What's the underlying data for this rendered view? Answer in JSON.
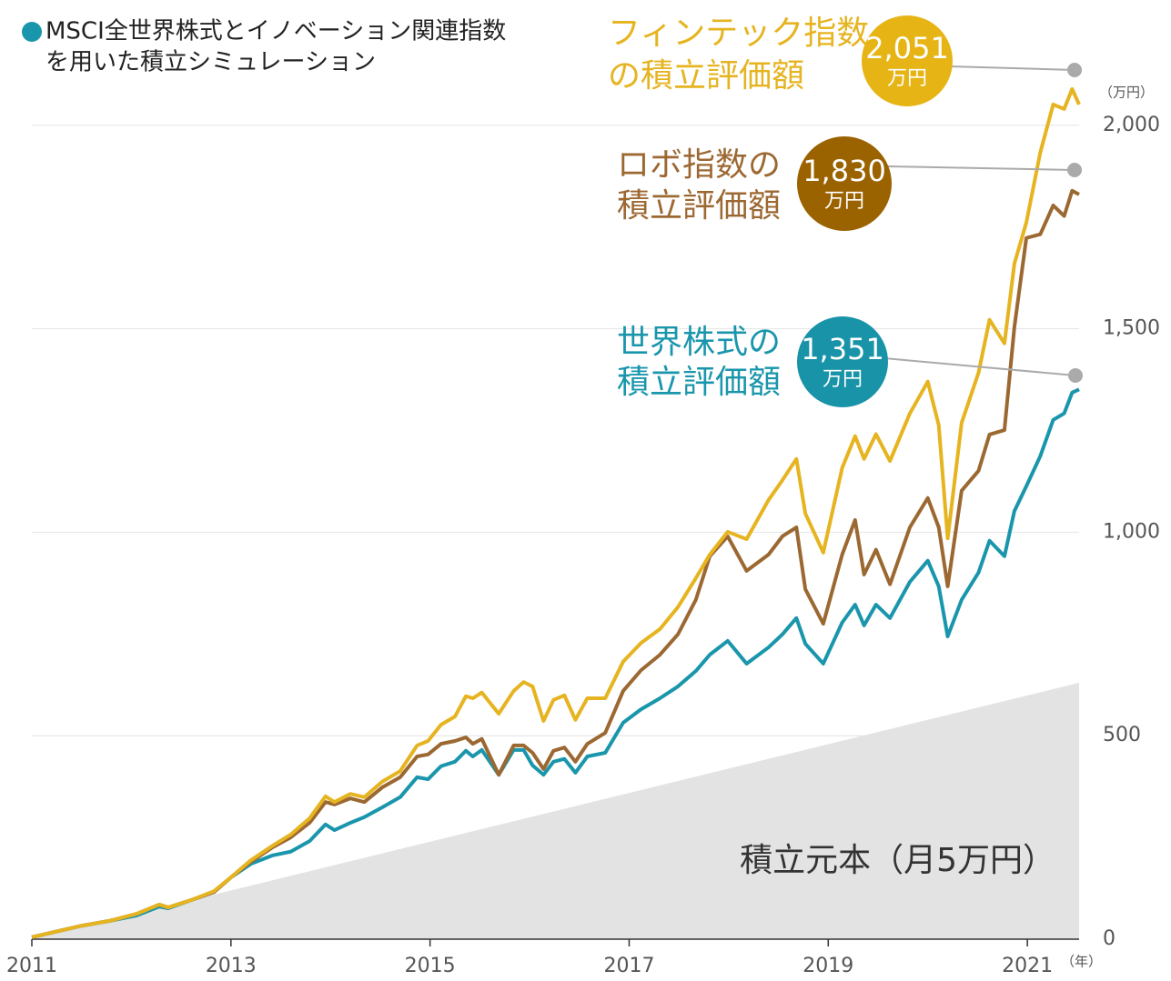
{
  "chart_data": {
    "type": "line",
    "title": [
      "MSCI全世界株式とイノベーション関連指数",
      "を用いた積立シミュレーション"
    ],
    "title_marker_color": "#1a96ac",
    "y_unit": "（万円）",
    "x_unit": "（年）",
    "xlim": [
      2011,
      2021.52
    ],
    "xticks": [
      2011,
      2013,
      2015,
      2017,
      2019,
      2021
    ],
    "ylim": [
      0,
      2100
    ],
    "yticks": [
      0,
      500,
      {
        "value": 1000,
        "label": "1,000"
      },
      {
        "value": 1500,
        "label": "1,500"
      },
      {
        "value": 2000,
        "label": "2,000"
      }
    ],
    "grid": true,
    "x": [
      2011.0,
      2011.5,
      2011.78,
      2012.05,
      2012.28,
      2012.37,
      2012.6,
      2012.83,
      2013.0,
      2013.2,
      2013.42,
      2013.6,
      2013.79,
      2013.95,
      2014.04,
      2014.2,
      2014.34,
      2014.52,
      2014.7,
      2014.87,
      2014.98,
      2015.11,
      2015.25,
      2015.36,
      2015.43,
      2015.52,
      2015.69,
      2015.84,
      2015.94,
      2016.03,
      2016.14,
      2016.24,
      2016.35,
      2016.46,
      2016.58,
      2016.76,
      2016.94,
      2017.12,
      2017.31,
      2017.49,
      2017.67,
      2017.81,
      2017.99,
      2018.18,
      2018.4,
      2018.54,
      2018.68,
      2018.77,
      2018.95,
      2019.14,
      2019.27,
      2019.36,
      2019.48,
      2019.62,
      2019.82,
      2020.0,
      2020.11,
      2020.2,
      2020.34,
      2020.51,
      2020.62,
      2020.77,
      2020.87,
      2020.99,
      2021.13,
      2021.26,
      2021.37,
      2021.45,
      2021.52
    ],
    "series": [
      {
        "label": [
          "フィンテック指数",
          "の積立評価額"
        ],
        "color": "#e6b420",
        "bubble_color": "#e7b416",
        "end_value": 2051,
        "end_value_label": "2,051",
        "unit": "万円",
        "values": [
          5,
          33,
          45,
          62,
          85,
          78,
          96,
          118,
          152,
          194,
          230,
          257,
          297,
          351,
          337,
          357,
          349,
          387,
          413,
          476,
          487,
          527,
          547,
          597,
          592,
          606,
          554,
          610,
          632,
          621,
          536,
          588,
          599,
          539,
          592,
          592,
          682,
          728,
          762,
          816,
          887,
          945,
          1001,
          983,
          1079,
          1128,
          1180,
          1046,
          950,
          1158,
          1236,
          1180,
          1241,
          1175,
          1292,
          1370,
          1263,
          985,
          1269,
          1392,
          1522,
          1464,
          1660,
          1761,
          1933,
          2051,
          2040,
          2089,
          2051
        ]
      },
      {
        "label": [
          "ロボ指数の",
          "積立評価額"
        ],
        "color": "#9c6832",
        "bubble_color": "#9b6200",
        "end_value": 1830,
        "end_value_label": "1,830",
        "unit": "万円",
        "values": [
          5,
          33,
          45,
          62,
          85,
          78,
          96,
          116,
          152,
          190,
          226,
          250,
          286,
          337,
          331,
          346,
          337,
          373,
          398,
          449,
          454,
          480,
          487,
          496,
          480,
          492,
          404,
          476,
          476,
          458,
          418,
          463,
          471,
          436,
          480,
          507,
          610,
          661,
          699,
          749,
          834,
          941,
          990,
          905,
          945,
          990,
          1012,
          860,
          775,
          945,
          1030,
          896,
          957,
          872,
          1012,
          1084,
          1012,
          867,
          1102,
          1151,
          1240,
          1251,
          1504,
          1723,
          1732,
          1803,
          1777,
          1839,
          1830
        ]
      },
      {
        "label": [
          "世界株式の",
          "積立評価額"
        ],
        "color": "#1a96ac",
        "bubble_color": "#1993a8",
        "end_value": 1351,
        "end_value_label": "1,351",
        "unit": "万円",
        "values": [
          5,
          33,
          45,
          58,
          80,
          76,
          96,
          116,
          152,
          185,
          206,
          215,
          241,
          282,
          268,
          286,
          300,
          324,
          349,
          398,
          393,
          425,
          436,
          463,
          449,
          465,
          404,
          465,
          465,
          427,
          404,
          436,
          443,
          409,
          449,
          458,
          532,
          565,
          592,
          621,
          659,
          699,
          733,
          677,
          717,
          749,
          789,
          726,
          677,
          778,
          822,
          771,
          822,
          789,
          878,
          930,
          867,
          744,
          834,
          901,
          979,
          941,
          1052,
          1113,
          1187,
          1276,
          1292,
          1343,
          1351
        ]
      }
    ],
    "principal": {
      "label": "積立元本（月5万円）",
      "color": "#e3e3e3",
      "x": [
        2011,
        2021.52
      ],
      "values": [
        0,
        630
      ]
    }
  }
}
